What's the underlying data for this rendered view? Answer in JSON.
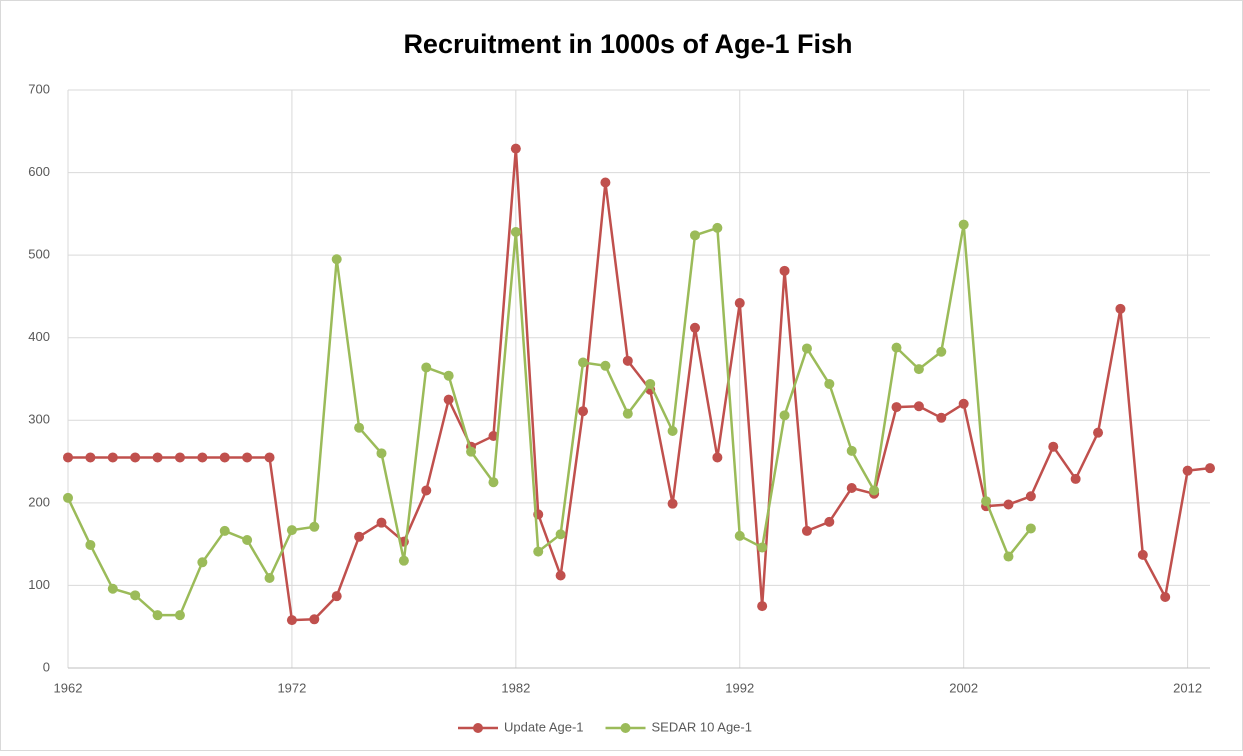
{
  "chart_data": {
    "type": "line",
    "title": "Recruitment in 1000s of Age-1 Fish",
    "x": [
      1962,
      1963,
      1964,
      1965,
      1966,
      1967,
      1968,
      1969,
      1970,
      1971,
      1972,
      1973,
      1974,
      1975,
      1976,
      1977,
      1978,
      1979,
      1980,
      1981,
      1982,
      1983,
      1984,
      1985,
      1986,
      1987,
      1988,
      1989,
      1990,
      1991,
      1992,
      1993,
      1994,
      1995,
      1996,
      1997,
      1998,
      1999,
      2000,
      2001,
      2002,
      2003,
      2004,
      2005,
      2006,
      2007,
      2008,
      2009,
      2010,
      2011,
      2012,
      2013
    ],
    "series": [
      {
        "name": "Update Age-1",
        "color": "#c0504d",
        "values": [
          255,
          255,
          255,
          255,
          255,
          255,
          255,
          255,
          255,
          255,
          58,
          59,
          87,
          159,
          176,
          153,
          215,
          325,
          268,
          281,
          629,
          186,
          112,
          311,
          588,
          372,
          337,
          199,
          412,
          255,
          442,
          75,
          481,
          166,
          177,
          218,
          211,
          316,
          317,
          303,
          320,
          196,
          198,
          208,
          268,
          229,
          285,
          435,
          137,
          86,
          239,
          242
        ]
      },
      {
        "name": "SEDAR 10 Age-1",
        "color": "#9bbb59",
        "values": [
          206,
          149,
          96,
          88,
          64,
          64,
          128,
          166,
          155,
          109,
          167,
          171,
          495,
          291,
          260,
          130,
          364,
          354,
          262,
          225,
          528,
          141,
          162,
          370,
          366,
          308,
          344,
          287,
          524,
          533,
          160,
          146,
          306,
          387,
          344,
          263,
          215,
          388,
          362,
          383,
          537,
          202,
          135,
          169,
          null,
          null,
          null,
          null,
          null,
          null,
          null,
          null
        ]
      }
    ],
    "xlim": [
      1962,
      2013
    ],
    "xticks": [
      1962,
      1972,
      1982,
      1992,
      2002,
      2012
    ],
    "ylim": [
      0,
      700
    ],
    "yticks": [
      0,
      100,
      200,
      300,
      400,
      500,
      600,
      700
    ],
    "grid": true,
    "legend": "bottom"
  }
}
